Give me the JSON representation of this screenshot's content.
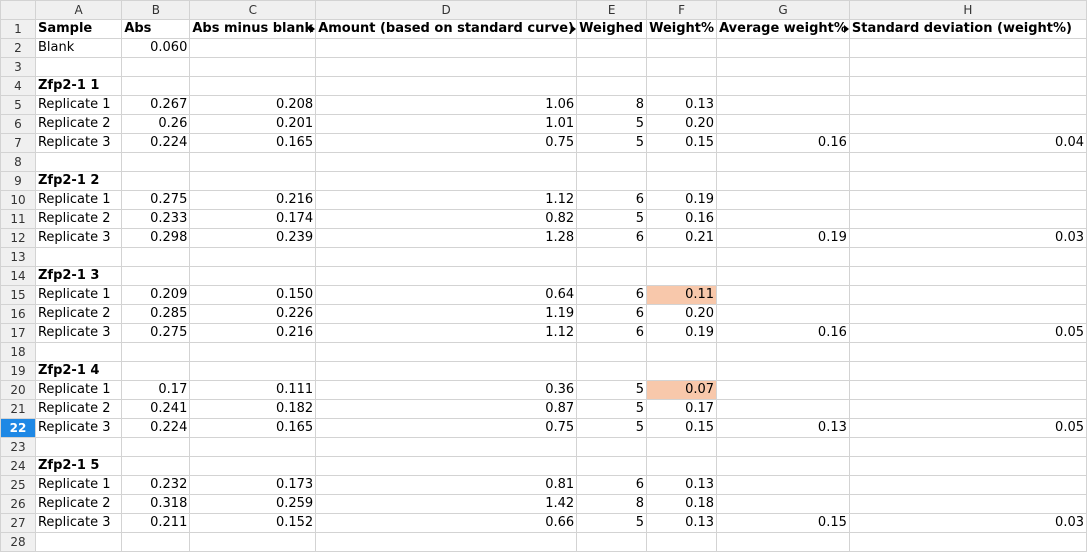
{
  "columns": [
    "A",
    "B",
    "C",
    "D",
    "E",
    "F",
    "G",
    "H"
  ],
  "active_row": 22,
  "colors": {
    "highlight": "#f8c8ab",
    "active_row_header": "#1e88e5"
  },
  "headers": {
    "A": "Sample",
    "B": "Abs",
    "C": "Abs minus blank",
    "D": "Amount (based on standard curve)",
    "E": "Weighed",
    "F": "Weight%",
    "G": "Average weight%",
    "H": "Standard deviation (weight%)"
  },
  "rows": [
    {
      "n": "1",
      "type": "header"
    },
    {
      "n": "2",
      "type": "blank",
      "A": "Blank",
      "B": "0.060"
    },
    {
      "n": "3",
      "type": "empty"
    },
    {
      "n": "4",
      "type": "group",
      "A": "Zfp2-1 1"
    },
    {
      "n": "5",
      "type": "data",
      "A": "Replicate 1",
      "B": "0.267",
      "C": "0.208",
      "D": "1.06",
      "E": "8",
      "F": "0.13",
      "G": "",
      "H": ""
    },
    {
      "n": "6",
      "type": "data",
      "A": "Replicate 2",
      "B": "0.26",
      "C": "0.201",
      "D": "1.01",
      "E": "5",
      "F": "0.20",
      "G": "",
      "H": ""
    },
    {
      "n": "7",
      "type": "data",
      "A": "Replicate 3",
      "B": "0.224",
      "C": "0.165",
      "D": "0.75",
      "E": "5",
      "F": "0.15",
      "G": "0.16",
      "H": "0.04"
    },
    {
      "n": "8",
      "type": "empty"
    },
    {
      "n": "9",
      "type": "group",
      "A": "Zfp2-1 2"
    },
    {
      "n": "10",
      "type": "data",
      "A": "Replicate 1",
      "B": "0.275",
      "C": "0.216",
      "D": "1.12",
      "E": "6",
      "F": "0.19",
      "G": "",
      "H": ""
    },
    {
      "n": "11",
      "type": "data",
      "A": "Replicate 2",
      "B": "0.233",
      "C": "0.174",
      "D": "0.82",
      "E": "5",
      "F": "0.16",
      "G": "",
      "H": ""
    },
    {
      "n": "12",
      "type": "data",
      "A": "Replicate 3",
      "B": "0.298",
      "C": "0.239",
      "D": "1.28",
      "E": "6",
      "F": "0.21",
      "G": "0.19",
      "H": "0.03"
    },
    {
      "n": "13",
      "type": "empty"
    },
    {
      "n": "14",
      "type": "group",
      "A": "Zfp2-1 3"
    },
    {
      "n": "15",
      "type": "data",
      "A": "Replicate 1",
      "B": "0.209",
      "C": "0.150",
      "D": "0.64",
      "E": "6",
      "F": "0.11",
      "G": "",
      "H": "",
      "highlightF": true
    },
    {
      "n": "16",
      "type": "data",
      "A": "Replicate 2",
      "B": "0.285",
      "C": "0.226",
      "D": "1.19",
      "E": "6",
      "F": "0.20",
      "G": "",
      "H": ""
    },
    {
      "n": "17",
      "type": "data",
      "A": "Replicate 3",
      "B": "0.275",
      "C": "0.216",
      "D": "1.12",
      "E": "6",
      "F": "0.19",
      "G": "0.16",
      "H": "0.05"
    },
    {
      "n": "18",
      "type": "empty"
    },
    {
      "n": "19",
      "type": "group",
      "A": "Zfp2-1 4"
    },
    {
      "n": "20",
      "type": "data",
      "A": "Replicate 1",
      "B": "0.17",
      "C": "0.111",
      "D": "0.36",
      "E": "5",
      "F": "0.07",
      "G": "",
      "H": "",
      "highlightF": true
    },
    {
      "n": "21",
      "type": "data",
      "A": "Replicate 2",
      "B": "0.241",
      "C": "0.182",
      "D": "0.87",
      "E": "5",
      "F": "0.17",
      "G": "",
      "H": ""
    },
    {
      "n": "22",
      "type": "data",
      "A": "Replicate 3",
      "B": "0.224",
      "C": "0.165",
      "D": "0.75",
      "E": "5",
      "F": "0.15",
      "G": "0.13",
      "H": "0.05"
    },
    {
      "n": "23",
      "type": "empty"
    },
    {
      "n": "24",
      "type": "group",
      "A": "Zfp2-1 5"
    },
    {
      "n": "25",
      "type": "data",
      "A": "Replicate 1",
      "B": "0.232",
      "C": "0.173",
      "D": "0.81",
      "E": "6",
      "F": "0.13",
      "G": "",
      "H": ""
    },
    {
      "n": "26",
      "type": "data",
      "A": "Replicate 2",
      "B": "0.318",
      "C": "0.259",
      "D": "1.42",
      "E": "8",
      "F": "0.18",
      "G": "",
      "H": ""
    },
    {
      "n": "27",
      "type": "data",
      "A": "Replicate 3",
      "B": "0.211",
      "C": "0.152",
      "D": "0.66",
      "E": "5",
      "F": "0.13",
      "G": "0.15",
      "H": "0.03"
    },
    {
      "n": "28",
      "type": "empty"
    }
  ]
}
